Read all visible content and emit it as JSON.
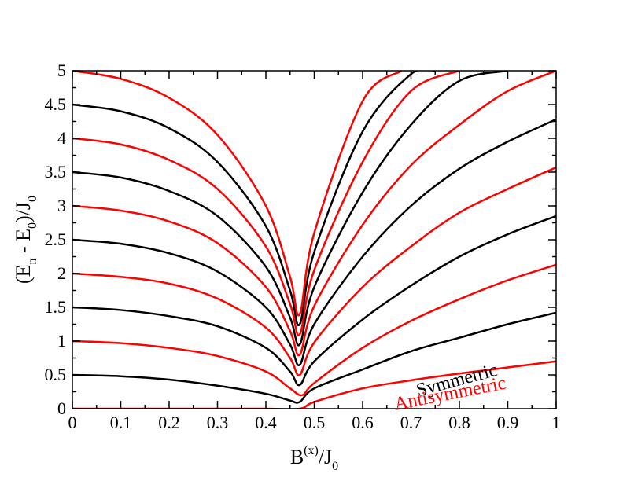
{
  "chart_data": {
    "type": "line",
    "title": "",
    "xlabel": {
      "main": "B",
      "sup": "(x)",
      "rest": "/J",
      "sub": "0"
    },
    "ylabel": {
      "p1": "(E",
      "sub1": "n",
      "p2": " - E",
      "sub2": "0",
      "p3": ")/J",
      "sub3": "0"
    },
    "xlim": [
      0,
      1
    ],
    "ylim": [
      0,
      5
    ],
    "x_ticks": [
      "0",
      "0.1",
      "0.2",
      "0.3",
      "0.4",
      "0.5",
      "0.6",
      "0.7",
      "0.8",
      "0.9",
      "1"
    ],
    "y_ticks": [
      "0",
      "0.5",
      "1",
      "1.5",
      "2",
      "2.5",
      "3",
      "3.5",
      "4",
      "4.5",
      "5"
    ],
    "grid": false,
    "colors": {
      "symmetric": "#000000",
      "antisymmetric": "#ff0000"
    },
    "annotations": {
      "symmetric": "Symmetric",
      "antisymmetric": "Antisymmetric"
    },
    "series": [
      {
        "group": "antisymmetric",
        "x": [
          0,
          0.1,
          0.2,
          0.3,
          0.4,
          0.47,
          0.5,
          0.6,
          0.7,
          0.8,
          0.9,
          1.0
        ],
        "y": [
          0,
          0,
          0,
          0,
          0,
          0,
          0.1,
          0.3,
          0.42,
          0.52,
          0.61,
          0.7
        ]
      },
      {
        "group": "symmetric",
        "x": [
          0,
          0.1,
          0.2,
          0.3,
          0.4,
          0.45,
          0.47,
          0.5,
          0.6,
          0.7,
          0.8,
          0.9,
          1.0
        ],
        "y": [
          0.5,
          0.48,
          0.43,
          0.34,
          0.22,
          0.12,
          0.1,
          0.3,
          0.58,
          0.85,
          1.05,
          1.25,
          1.42
        ]
      },
      {
        "group": "antisymmetric",
        "x": [
          0,
          0.1,
          0.2,
          0.3,
          0.4,
          0.45,
          0.475,
          0.5,
          0.6,
          0.7,
          0.8,
          0.9,
          1.0
        ],
        "y": [
          1.0,
          0.97,
          0.9,
          0.78,
          0.55,
          0.3,
          0.2,
          0.38,
          0.9,
          1.3,
          1.62,
          1.9,
          2.13
        ]
      },
      {
        "group": "symmetric",
        "x": [
          0,
          0.1,
          0.2,
          0.3,
          0.4,
          0.45,
          0.47,
          0.5,
          0.6,
          0.7,
          0.8,
          0.9,
          1.0
        ],
        "y": [
          1.5,
          1.46,
          1.37,
          1.22,
          0.9,
          0.55,
          0.35,
          0.7,
          1.32,
          1.82,
          2.25,
          2.58,
          2.85
        ]
      },
      {
        "group": "antisymmetric",
        "x": [
          0,
          0.1,
          0.2,
          0.3,
          0.4,
          0.45,
          0.47,
          0.5,
          0.6,
          0.7,
          0.8,
          0.9,
          1.0
        ],
        "y": [
          2.0,
          1.95,
          1.85,
          1.63,
          1.2,
          0.75,
          0.5,
          0.98,
          1.8,
          2.4,
          2.9,
          3.25,
          3.57
        ]
      },
      {
        "group": "symmetric",
        "x": [
          0,
          0.1,
          0.2,
          0.3,
          0.4,
          0.45,
          0.47,
          0.5,
          0.6,
          0.7,
          0.8,
          0.9,
          1.0
        ],
        "y": [
          2.5,
          2.44,
          2.3,
          2.03,
          1.5,
          0.95,
          0.65,
          1.25,
          2.25,
          3.0,
          3.55,
          3.95,
          4.28
        ]
      },
      {
        "group": "antisymmetric",
        "x": [
          0,
          0.1,
          0.2,
          0.3,
          0.4,
          0.45,
          0.47,
          0.5,
          0.6,
          0.7,
          0.8,
          0.9,
          1.0
        ],
        "y": [
          3.0,
          2.93,
          2.77,
          2.45,
          1.8,
          1.15,
          0.8,
          1.52,
          2.72,
          3.6,
          4.2,
          4.7,
          5.0
        ]
      },
      {
        "group": "symmetric",
        "x": [
          0,
          0.1,
          0.2,
          0.3,
          0.4,
          0.45,
          0.47,
          0.5,
          0.6,
          0.7,
          0.8,
          0.9
        ],
        "y": [
          3.5,
          3.42,
          3.22,
          2.85,
          2.1,
          1.35,
          0.95,
          1.8,
          3.2,
          4.2,
          4.85,
          5.0
        ]
      },
      {
        "group": "antisymmetric",
        "x": [
          0,
          0.1,
          0.2,
          0.3,
          0.4,
          0.45,
          0.47,
          0.5,
          0.6,
          0.7,
          0.8
        ],
        "y": [
          4.0,
          3.91,
          3.68,
          3.25,
          2.4,
          1.55,
          1.1,
          2.05,
          3.65,
          4.7,
          5.0
        ]
      },
      {
        "group": "symmetric",
        "x": [
          0,
          0.1,
          0.2,
          0.3,
          0.4,
          0.45,
          0.47,
          0.5,
          0.6,
          0.7,
          0.75
        ],
        "y": [
          4.5,
          4.4,
          4.15,
          3.65,
          2.7,
          1.75,
          1.25,
          2.32,
          4.1,
          4.95,
          5.0
        ]
      },
      {
        "group": "antisymmetric",
        "x": [
          0,
          0.1,
          0.2,
          0.3,
          0.4,
          0.45,
          0.47,
          0.5,
          0.6,
          0.68
        ],
        "y": [
          5.0,
          4.88,
          4.6,
          4.05,
          3.0,
          1.95,
          1.4,
          2.6,
          4.55,
          5.0
        ]
      }
    ]
  }
}
